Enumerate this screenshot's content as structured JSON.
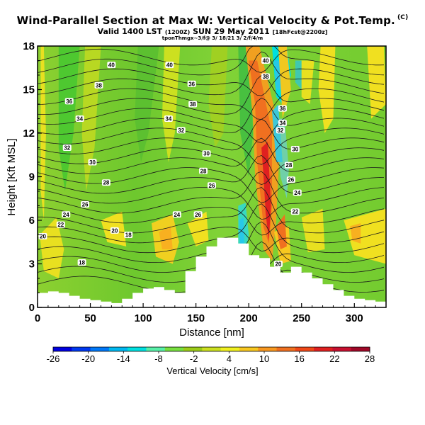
{
  "chart_data": {
    "type": "heatmap",
    "title": "Wind-Parallel Section at Max W: Vertical Velocity & Pot.Temp.",
    "title_mark": "(C)",
    "subtitle_main": "Valid 1400 LST",
    "subtitle_utc": "(1200Z)",
    "subtitle_date": "SUN 29 May 2011",
    "subtitle_fcst": "[18hFcst@2200z]",
    "credit": "tponThmgx~3/f@ 3/ 18/21 3/ 2/f/4/m",
    "xlabel": "Distance [nm]",
    "ylabel": "Height [Kft MSL]",
    "xlim": [
      0,
      330
    ],
    "ylim": [
      0,
      18
    ],
    "xticks": [
      0,
      50,
      100,
      150,
      200,
      250,
      300
    ],
    "yticks": [
      0,
      3,
      6,
      9,
      12,
      15,
      18
    ],
    "colorbar": {
      "label": "Vertical Velocity [cm/s]",
      "ticks": [
        -26,
        -20,
        -14,
        -8,
        -2,
        4,
        10,
        16,
        22,
        28
      ],
      "colors": [
        "#0000e0",
        "#0038f0",
        "#0078f8",
        "#00b8f0",
        "#00e0e0",
        "#58f0a8",
        "#78e040",
        "#9ccc18",
        "#cce020",
        "#f0f020",
        "#f8c820",
        "#f89820",
        "#f07020",
        "#f04818",
        "#e02020",
        "#c81030",
        "#a00828"
      ]
    },
    "terrain_profile": {
      "x": [
        0,
        10,
        20,
        30,
        40,
        50,
        60,
        70,
        80,
        90,
        100,
        110,
        120,
        130,
        140,
        150,
        160,
        170,
        180,
        190,
        200,
        210,
        220,
        230,
        240,
        250,
        260,
        270,
        280,
        290,
        300,
        310,
        320,
        330
      ],
      "height": [
        1.0,
        1.1,
        1.0,
        0.8,
        0.6,
        0.5,
        0.4,
        0.3,
        0.6,
        1.0,
        1.3,
        1.4,
        1.2,
        1.0,
        2.5,
        3.5,
        4.2,
        4.8,
        4.8,
        4.4,
        3.6,
        3.4,
        2.8,
        2.4,
        2.8,
        2.4,
        2.0,
        1.6,
        1.2,
        0.8,
        0.6,
        0.5,
        0.4,
        0.5
      ]
    },
    "contour_labels": [
      {
        "x": 5,
        "y": 4.9,
        "text": "20"
      },
      {
        "x": 27,
        "y": 6.4,
        "text": "24"
      },
      {
        "x": 22,
        "y": 5.7,
        "text": "22"
      },
      {
        "x": 28,
        "y": 11.0,
        "text": "32"
      },
      {
        "x": 30,
        "y": 14.2,
        "text": "36"
      },
      {
        "x": 40,
        "y": 13.0,
        "text": "34"
      },
      {
        "x": 42,
        "y": 3.1,
        "text": "18"
      },
      {
        "x": 45,
        "y": 7.1,
        "text": "26"
      },
      {
        "x": 52,
        "y": 10.0,
        "text": "30"
      },
      {
        "x": 58,
        "y": 15.3,
        "text": "38"
      },
      {
        "x": 65,
        "y": 8.6,
        "text": "28"
      },
      {
        "x": 70,
        "y": 16.7,
        "text": "40"
      },
      {
        "x": 73,
        "y": 5.3,
        "text": "20"
      },
      {
        "x": 86,
        "y": 5.0,
        "text": "18"
      },
      {
        "x": 124,
        "y": 13.0,
        "text": "34"
      },
      {
        "x": 125,
        "y": 16.7,
        "text": "40"
      },
      {
        "x": 132,
        "y": 6.4,
        "text": "24"
      },
      {
        "x": 136,
        "y": 12.2,
        "text": "32"
      },
      {
        "x": 146,
        "y": 15.4,
        "text": "36"
      },
      {
        "x": 147,
        "y": 14.0,
        "text": "38"
      },
      {
        "x": 152,
        "y": 6.4,
        "text": "26"
      },
      {
        "x": 157,
        "y": 9.4,
        "text": "28"
      },
      {
        "x": 160,
        "y": 10.6,
        "text": "30"
      },
      {
        "x": 165,
        "y": 8.4,
        "text": "26"
      },
      {
        "x": 216,
        "y": 17.0,
        "text": "40"
      },
      {
        "x": 216,
        "y": 15.9,
        "text": "38"
      },
      {
        "x": 232,
        "y": 13.7,
        "text": "36"
      },
      {
        "x": 232,
        "y": 12.7,
        "text": "34"
      },
      {
        "x": 230,
        "y": 12.2,
        "text": "32"
      },
      {
        "x": 244,
        "y": 10.9,
        "text": "30"
      },
      {
        "x": 238,
        "y": 9.8,
        "text": "28"
      },
      {
        "x": 240,
        "y": 8.8,
        "text": "26"
      },
      {
        "x": 246,
        "y": 7.9,
        "text": "24"
      },
      {
        "x": 244,
        "y": 6.6,
        "text": "22"
      },
      {
        "x": 228,
        "y": 3.0,
        "text": "20"
      }
    ]
  }
}
